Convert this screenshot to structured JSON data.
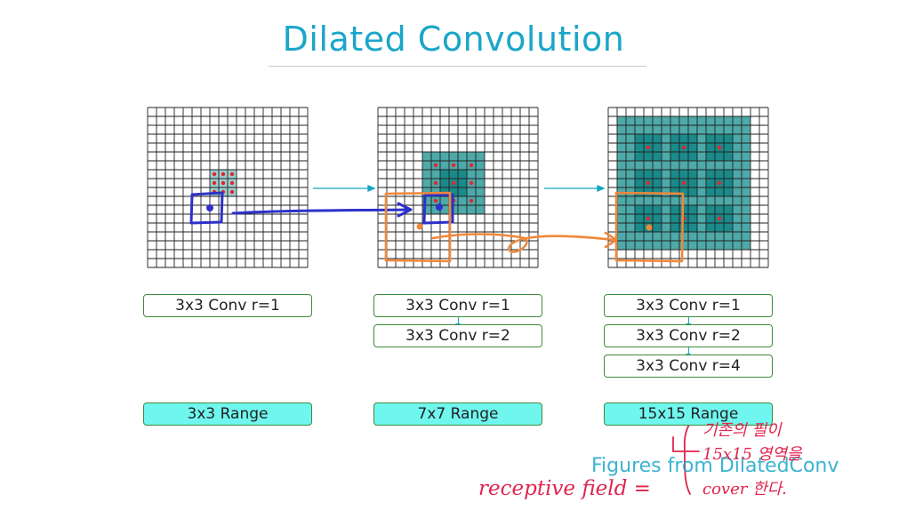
{
  "title": "Dilated Convolution",
  "panels": [
    {
      "convs": [
        "3x3 Conv r=1"
      ],
      "range": "3x3 Range"
    },
    {
      "convs": [
        "3x3 Conv r=1",
        "3x3 Conv r=2"
      ],
      "range": "7x7 Range"
    },
    {
      "convs": [
        "3x3 Conv r=1",
        "3x3 Conv r=2",
        "3x3 Conv r=4"
      ],
      "range": "15x15 Range"
    }
  ],
  "caption": "Figures from DilatedConv",
  "annotations": {
    "receptive_field": "receptive field =",
    "note_line1": "기존의 필이",
    "note_line2": "15x15 영역을",
    "note_line3": "cover 한다."
  },
  "colors": {
    "title": "#1aa6c9",
    "grid": "#222222",
    "teal_dark": "#1a8a8a",
    "teal_mid": "#4ea9a9",
    "teal_light": "#9fcfcf",
    "dot": "#e0262f",
    "blue_marker": "#2d31c9",
    "orange_marker": "#f0883a",
    "range_fill": "#6ff6ef",
    "annotation": "#e0244d"
  }
}
